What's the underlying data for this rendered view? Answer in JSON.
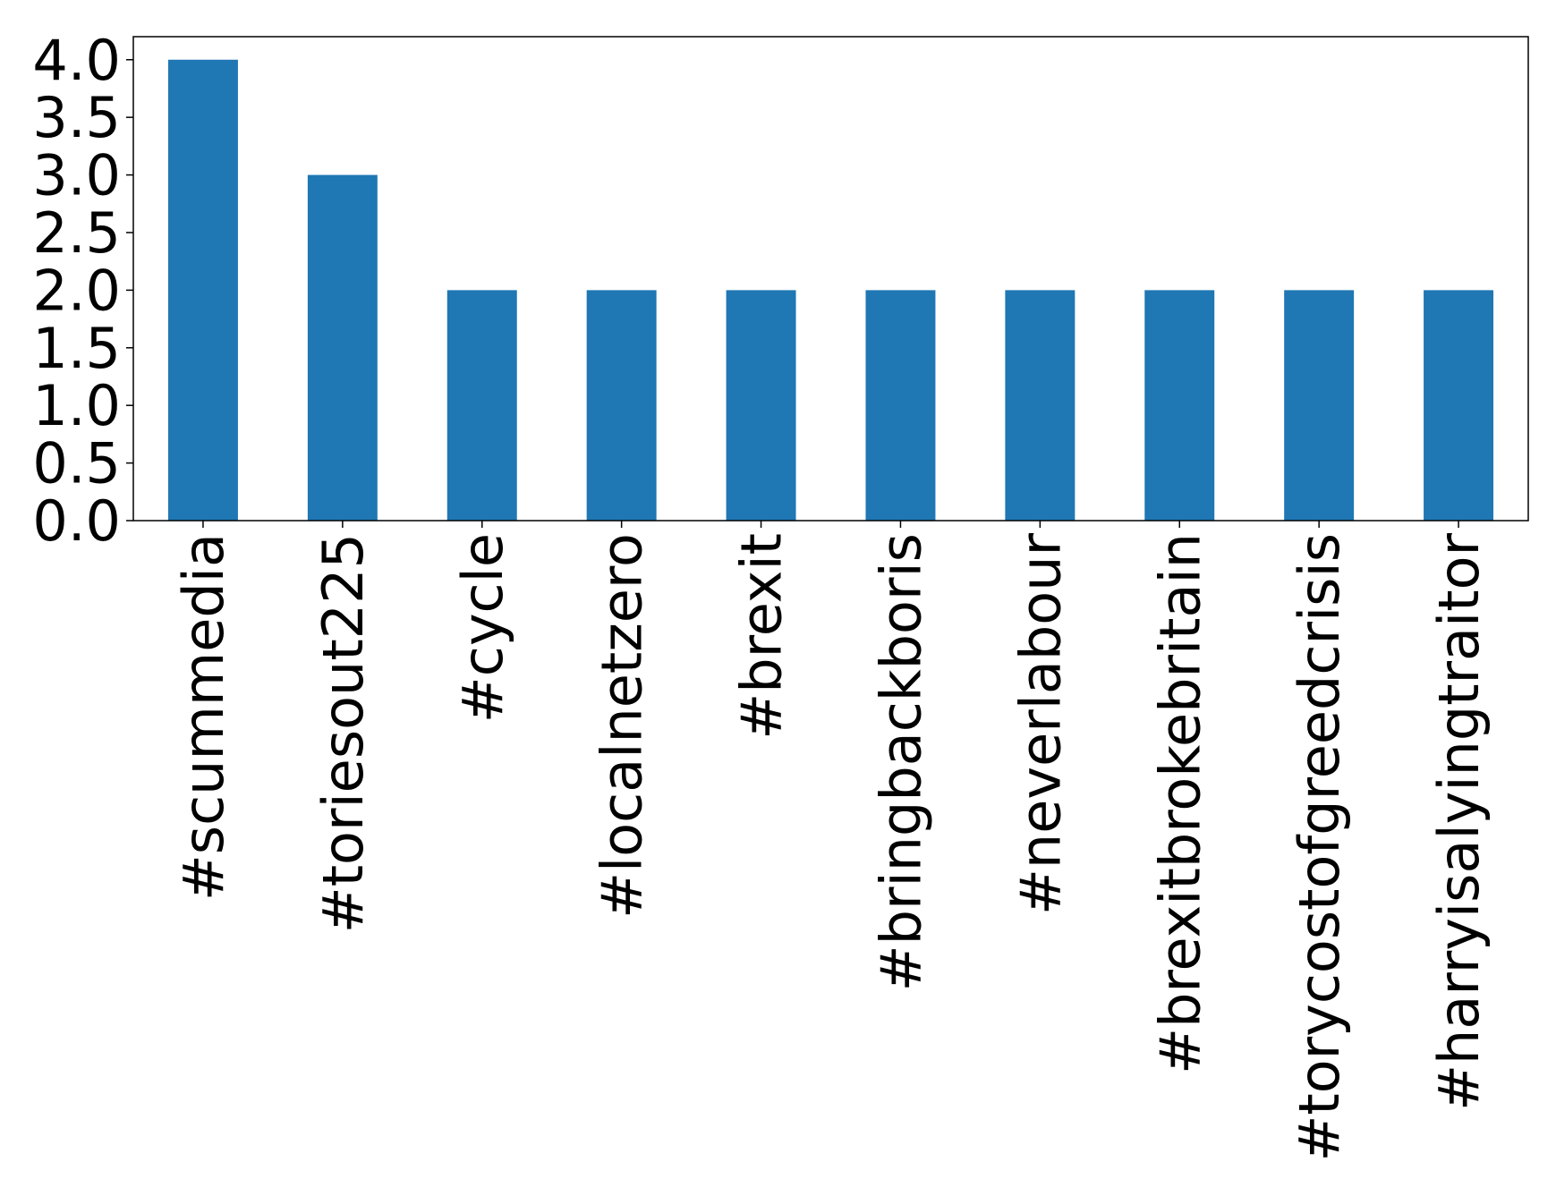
{
  "chart_data": {
    "type": "bar",
    "categories": [
      "#scummedia",
      "#toriesout225",
      "#cycle",
      "#localnetzero",
      "#brexit",
      "#bringbackboris",
      "#neverlabour",
      "#brexitbrokebritain",
      "#torycostofgreedcrisis",
      "#harryisalyingtraitor"
    ],
    "values": [
      4,
      3,
      2,
      2,
      2,
      2,
      2,
      2,
      2,
      2
    ],
    "color": "#1f77b4",
    "ylim": [
      0,
      4.2
    ],
    "yticks": [
      {
        "value": 0,
        "label": "0.0"
      },
      0.5,
      {
        "value": 1,
        "label": "1.0"
      },
      1.5,
      {
        "value": 2,
        "label": "2.0"
      },
      2.5,
      {
        "value": 3,
        "label": "3.0"
      },
      3.5,
      {
        "value": 4,
        "label": "4.0"
      }
    ],
    "grid": false
  }
}
